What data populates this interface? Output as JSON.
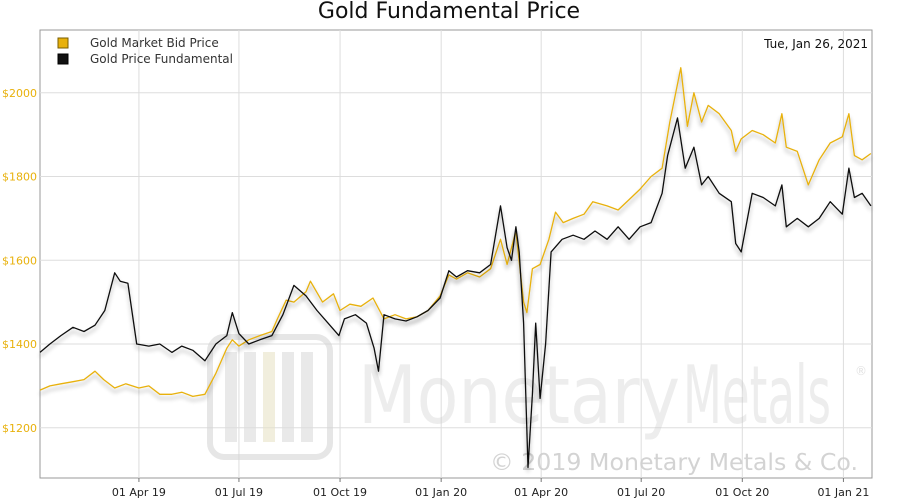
{
  "chart_data": {
    "type": "line",
    "title": "Gold Fundamental Price",
    "date_label": "Tue, Jan 26, 2021",
    "x_ticks": [
      "01 Apr 19",
      "01 Jul 19",
      "01 Oct 19",
      "01 Jan 20",
      "01 Apr 20",
      "01 Jul 20",
      "01 Oct 20",
      "01 Jan 21"
    ],
    "y_ticks": [
      "$1200",
      "$1400",
      "$1600",
      "$1800",
      "$2000"
    ],
    "y_tick_values": [
      1200,
      1400,
      1600,
      1800,
      2000
    ],
    "xlim": [
      "2019-01-01",
      "2021-01-27"
    ],
    "ylim": [
      1080,
      2150
    ],
    "grid": true,
    "legend_position": "top-left",
    "series": [
      {
        "name": "Gold Market Bid Price",
        "color": "#e8b10c",
        "points": [
          [
            "2019-01-01",
            1290
          ],
          [
            "2019-01-10",
            1300
          ],
          [
            "2019-01-20",
            1305
          ],
          [
            "2019-01-31",
            1310
          ],
          [
            "2019-02-10",
            1315
          ],
          [
            "2019-02-20",
            1335
          ],
          [
            "2019-02-28",
            1315
          ],
          [
            "2019-03-10",
            1295
          ],
          [
            "2019-03-20",
            1305
          ],
          [
            "2019-04-01",
            1295
          ],
          [
            "2019-04-10",
            1300
          ],
          [
            "2019-04-20",
            1280
          ],
          [
            "2019-05-01",
            1280
          ],
          [
            "2019-05-10",
            1285
          ],
          [
            "2019-05-20",
            1275
          ],
          [
            "2019-05-31",
            1280
          ],
          [
            "2019-06-10",
            1330
          ],
          [
            "2019-06-20",
            1390
          ],
          [
            "2019-06-25",
            1410
          ],
          [
            "2019-07-01",
            1395
          ],
          [
            "2019-07-10",
            1410
          ],
          [
            "2019-07-20",
            1420
          ],
          [
            "2019-07-31",
            1430
          ],
          [
            "2019-08-05",
            1460
          ],
          [
            "2019-08-13",
            1505
          ],
          [
            "2019-08-20",
            1500
          ],
          [
            "2019-08-31",
            1525
          ],
          [
            "2019-09-04",
            1550
          ],
          [
            "2019-09-15",
            1500
          ],
          [
            "2019-09-25",
            1520
          ],
          [
            "2019-10-01",
            1480
          ],
          [
            "2019-10-10",
            1495
          ],
          [
            "2019-10-20",
            1490
          ],
          [
            "2019-10-31",
            1510
          ],
          [
            "2019-11-10",
            1460
          ],
          [
            "2019-11-20",
            1470
          ],
          [
            "2019-11-30",
            1460
          ],
          [
            "2019-12-10",
            1465
          ],
          [
            "2019-12-20",
            1480
          ],
          [
            "2019-12-31",
            1515
          ],
          [
            "2020-01-08",
            1565
          ],
          [
            "2020-01-15",
            1555
          ],
          [
            "2020-01-25",
            1570
          ],
          [
            "2020-02-05",
            1560
          ],
          [
            "2020-02-15",
            1580
          ],
          [
            "2020-02-24",
            1650
          ],
          [
            "2020-03-01",
            1590
          ],
          [
            "2020-03-09",
            1670
          ],
          [
            "2020-03-16",
            1500
          ],
          [
            "2020-03-19",
            1475
          ],
          [
            "2020-03-24",
            1580
          ],
          [
            "2020-03-31",
            1590
          ],
          [
            "2020-04-08",
            1650
          ],
          [
            "2020-04-14",
            1715
          ],
          [
            "2020-04-21",
            1690
          ],
          [
            "2020-04-30",
            1700
          ],
          [
            "2020-05-10",
            1710
          ],
          [
            "2020-05-18",
            1740
          ],
          [
            "2020-05-31",
            1730
          ],
          [
            "2020-06-10",
            1720
          ],
          [
            "2020-06-20",
            1745
          ],
          [
            "2020-06-30",
            1770
          ],
          [
            "2020-07-10",
            1800
          ],
          [
            "2020-07-20",
            1820
          ],
          [
            "2020-07-27",
            1930
          ],
          [
            "2020-08-06",
            2060
          ],
          [
            "2020-08-12",
            1920
          ],
          [
            "2020-08-18",
            2000
          ],
          [
            "2020-08-25",
            1930
          ],
          [
            "2020-08-31",
            1970
          ],
          [
            "2020-09-10",
            1950
          ],
          [
            "2020-09-21",
            1910
          ],
          [
            "2020-09-25",
            1860
          ],
          [
            "2020-09-30",
            1890
          ],
          [
            "2020-10-10",
            1910
          ],
          [
            "2020-10-20",
            1900
          ],
          [
            "2020-10-31",
            1880
          ],
          [
            "2020-11-06",
            1950
          ],
          [
            "2020-11-10",
            1870
          ],
          [
            "2020-11-20",
            1860
          ],
          [
            "2020-11-30",
            1780
          ],
          [
            "2020-12-10",
            1840
          ],
          [
            "2020-12-20",
            1880
          ],
          [
            "2020-12-31",
            1895
          ],
          [
            "2021-01-06",
            1950
          ],
          [
            "2021-01-11",
            1850
          ],
          [
            "2021-01-18",
            1840
          ],
          [
            "2021-01-26",
            1855
          ]
        ]
      },
      {
        "name": "Gold Price Fundamental",
        "color": "#111111",
        "points": [
          [
            "2019-01-01",
            1380
          ],
          [
            "2019-01-10",
            1400
          ],
          [
            "2019-01-20",
            1420
          ],
          [
            "2019-01-31",
            1440
          ],
          [
            "2019-02-10",
            1430
          ],
          [
            "2019-02-20",
            1445
          ],
          [
            "2019-03-01",
            1480
          ],
          [
            "2019-03-10",
            1570
          ],
          [
            "2019-03-15",
            1550
          ],
          [
            "2019-03-22",
            1545
          ],
          [
            "2019-03-30",
            1400
          ],
          [
            "2019-04-10",
            1395
          ],
          [
            "2019-04-20",
            1400
          ],
          [
            "2019-05-01",
            1380
          ],
          [
            "2019-05-10",
            1395
          ],
          [
            "2019-05-20",
            1385
          ],
          [
            "2019-05-31",
            1360
          ],
          [
            "2019-06-10",
            1400
          ],
          [
            "2019-06-20",
            1420
          ],
          [
            "2019-06-25",
            1475
          ],
          [
            "2019-07-01",
            1425
          ],
          [
            "2019-07-10",
            1400
          ],
          [
            "2019-07-20",
            1410
          ],
          [
            "2019-07-31",
            1420
          ],
          [
            "2019-08-10",
            1470
          ],
          [
            "2019-08-20",
            1540
          ],
          [
            "2019-08-31",
            1515
          ],
          [
            "2019-09-10",
            1480
          ],
          [
            "2019-09-20",
            1450
          ],
          [
            "2019-09-30",
            1420
          ],
          [
            "2019-10-05",
            1460
          ],
          [
            "2019-10-15",
            1470
          ],
          [
            "2019-10-25",
            1450
          ],
          [
            "2019-11-01",
            1390
          ],
          [
            "2019-11-05",
            1335
          ],
          [
            "2019-11-10",
            1470
          ],
          [
            "2019-11-20",
            1460
          ],
          [
            "2019-11-30",
            1455
          ],
          [
            "2019-12-10",
            1465
          ],
          [
            "2019-12-20",
            1480
          ],
          [
            "2019-12-31",
            1510
          ],
          [
            "2020-01-08",
            1575
          ],
          [
            "2020-01-15",
            1560
          ],
          [
            "2020-01-25",
            1575
          ],
          [
            "2020-02-05",
            1570
          ],
          [
            "2020-02-15",
            1590
          ],
          [
            "2020-02-24",
            1730
          ],
          [
            "2020-03-01",
            1630
          ],
          [
            "2020-03-05",
            1600
          ],
          [
            "2020-03-09",
            1680
          ],
          [
            "2020-03-12",
            1620
          ],
          [
            "2020-03-16",
            1450
          ],
          [
            "2020-03-20",
            1105
          ],
          [
            "2020-03-24",
            1280
          ],
          [
            "2020-03-27",
            1450
          ],
          [
            "2020-03-31",
            1270
          ],
          [
            "2020-04-05",
            1400
          ],
          [
            "2020-04-10",
            1620
          ],
          [
            "2020-04-20",
            1650
          ],
          [
            "2020-04-30",
            1660
          ],
          [
            "2020-05-10",
            1650
          ],
          [
            "2020-05-20",
            1670
          ],
          [
            "2020-05-31",
            1650
          ],
          [
            "2020-06-10",
            1680
          ],
          [
            "2020-06-20",
            1650
          ],
          [
            "2020-06-30",
            1680
          ],
          [
            "2020-07-10",
            1690
          ],
          [
            "2020-07-20",
            1760
          ],
          [
            "2020-07-25",
            1850
          ],
          [
            "2020-08-03",
            1940
          ],
          [
            "2020-08-10",
            1820
          ],
          [
            "2020-08-18",
            1870
          ],
          [
            "2020-08-25",
            1780
          ],
          [
            "2020-08-31",
            1800
          ],
          [
            "2020-09-10",
            1760
          ],
          [
            "2020-09-21",
            1740
          ],
          [
            "2020-09-25",
            1640
          ],
          [
            "2020-09-30",
            1620
          ],
          [
            "2020-10-10",
            1760
          ],
          [
            "2020-10-20",
            1750
          ],
          [
            "2020-10-31",
            1730
          ],
          [
            "2020-11-06",
            1780
          ],
          [
            "2020-11-10",
            1680
          ],
          [
            "2020-11-20",
            1700
          ],
          [
            "2020-11-30",
            1680
          ],
          [
            "2020-12-10",
            1700
          ],
          [
            "2020-12-20",
            1740
          ],
          [
            "2020-12-31",
            1710
          ],
          [
            "2021-01-06",
            1820
          ],
          [
            "2021-01-11",
            1750
          ],
          [
            "2021-01-18",
            1760
          ],
          [
            "2021-01-26",
            1730
          ]
        ]
      }
    ]
  },
  "watermark": {
    "brand_left": "Monetary",
    "brand_right": "Metals",
    "registered": "®",
    "copyright": "© 2019 Monetary Metals & Co."
  },
  "colors": {
    "gold": "#e8b10c",
    "black": "#111111",
    "grid": "#dddddd",
    "axis_label": "#e8b10c"
  }
}
